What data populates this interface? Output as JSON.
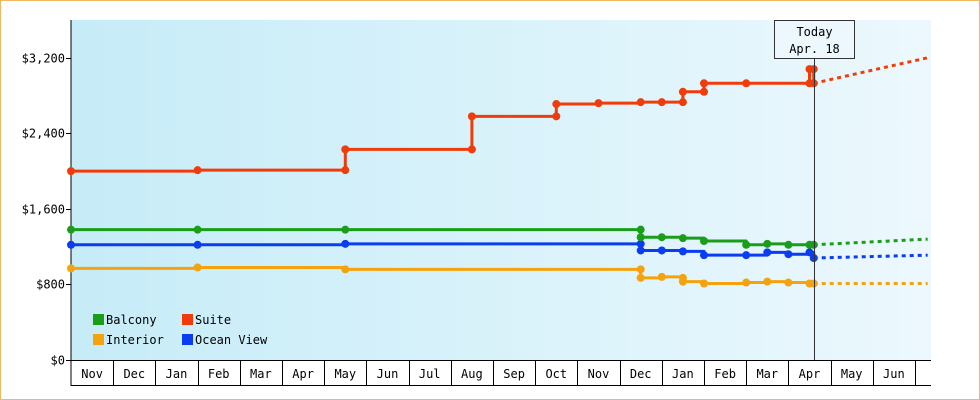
{
  "chart_data": {
    "type": "line",
    "step": true,
    "ylim": [
      0,
      3600
    ],
    "yticks": [
      0,
      800,
      1600,
      2400,
      3200
    ],
    "ytick_labels": [
      "$0",
      "$800",
      "$1,600",
      "$2,400",
      "$3,200"
    ],
    "x_months": [
      "Nov",
      "Dec",
      "Jan",
      "Feb",
      "Mar",
      "Apr",
      "May",
      "Jun",
      "Jul",
      "Aug",
      "Sep",
      "Oct",
      "Nov",
      "Dec",
      "Jan",
      "Feb",
      "Mar",
      "Apr",
      "May",
      "Jun"
    ],
    "x_range_months": [
      0,
      20.3
    ],
    "x_unit": "months since start of first Nov",
    "today": {
      "label_line1": "Today",
      "label_line2": "Apr. 18",
      "x": 17.6
    },
    "legend": {
      "placement": "bottom-left",
      "entries": [
        {
          "name": "Balcony",
          "color": "#1a9e1a"
        },
        {
          "name": "Suite",
          "color": "#f03c0a"
        },
        {
          "name": "Interior",
          "color": "#f5a20f"
        },
        {
          "name": "Ocean View",
          "color": "#0a3cf0"
        }
      ]
    },
    "series": [
      {
        "name": "Suite",
        "color": "#f03c0a",
        "points": [
          [
            0,
            2000
          ],
          [
            3,
            2010
          ],
          [
            6.5,
            2010
          ],
          [
            6.5,
            2230
          ],
          [
            9.5,
            2230
          ],
          [
            9.5,
            2580
          ],
          [
            11.5,
            2580
          ],
          [
            11.5,
            2710
          ],
          [
            12.5,
            2720
          ],
          [
            13.5,
            2730
          ],
          [
            14,
            2730
          ],
          [
            14.5,
            2730
          ],
          [
            14.5,
            2840
          ],
          [
            15,
            2840
          ],
          [
            15,
            2930
          ],
          [
            16,
            2930
          ],
          [
            17.5,
            2930
          ],
          [
            17.5,
            3080
          ],
          [
            17.6,
            3080
          ],
          [
            17.6,
            2930
          ]
        ],
        "forecast": [
          [
            17.6,
            2930
          ],
          [
            20.3,
            3200
          ]
        ]
      },
      {
        "name": "Balcony",
        "color": "#1a9e1a",
        "points": [
          [
            0,
            1380
          ],
          [
            3,
            1380
          ],
          [
            6.5,
            1380
          ],
          [
            13.5,
            1380
          ],
          [
            13.5,
            1300
          ],
          [
            14,
            1300
          ],
          [
            14.5,
            1290
          ],
          [
            15,
            1260
          ],
          [
            16,
            1220
          ],
          [
            16.5,
            1230
          ],
          [
            17,
            1220
          ],
          [
            17.5,
            1220
          ],
          [
            17.6,
            1220
          ]
        ],
        "forecast": [
          [
            17.6,
            1220
          ],
          [
            20.3,
            1280
          ]
        ]
      },
      {
        "name": "Ocean View",
        "color": "#0a3cf0",
        "points": [
          [
            0,
            1220
          ],
          [
            3,
            1220
          ],
          [
            6.5,
            1230
          ],
          [
            13.5,
            1230
          ],
          [
            13.5,
            1160
          ],
          [
            14,
            1160
          ],
          [
            14.5,
            1150
          ],
          [
            15,
            1110
          ],
          [
            16,
            1110
          ],
          [
            16.5,
            1140
          ],
          [
            17,
            1120
          ],
          [
            17.5,
            1140
          ],
          [
            17.6,
            1080
          ]
        ],
        "forecast": [
          [
            17.6,
            1080
          ],
          [
            20.3,
            1110
          ]
        ]
      },
      {
        "name": "Interior",
        "color": "#f5a20f",
        "points": [
          [
            0,
            970
          ],
          [
            3,
            980
          ],
          [
            6.5,
            960
          ],
          [
            13.5,
            960
          ],
          [
            13.5,
            870
          ],
          [
            14,
            880
          ],
          [
            14.5,
            870
          ],
          [
            14.5,
            830
          ],
          [
            15,
            810
          ],
          [
            16,
            820
          ],
          [
            16.5,
            830
          ],
          [
            17,
            820
          ],
          [
            17.5,
            810
          ],
          [
            17.6,
            810
          ]
        ],
        "forecast": [
          [
            17.6,
            810
          ],
          [
            20.3,
            810
          ]
        ]
      }
    ]
  }
}
